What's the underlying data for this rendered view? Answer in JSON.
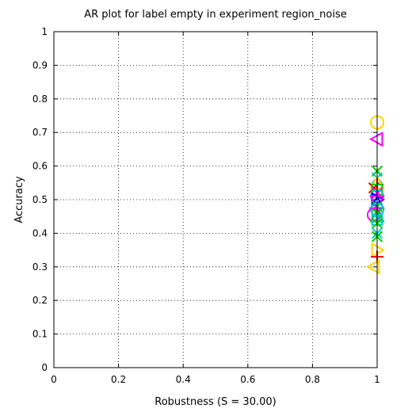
{
  "chart_data": {
    "type": "scatter",
    "title": "AR plot for label empty in experiment region_noise",
    "xlabel": "Robustness (S = 30.00)",
    "ylabel": "Accuracy",
    "xlim": [
      0,
      1
    ],
    "ylim": [
      0,
      1
    ],
    "xticks": [
      "0",
      "0.2",
      "0.4",
      "0.6",
      "0.8",
      "1"
    ],
    "yticks": [
      "0",
      "0.1",
      "0.2",
      "0.3",
      "0.4",
      "0.5",
      "0.6",
      "0.7",
      "0.8",
      "0.9",
      "1"
    ],
    "grid": true,
    "points": [
      {
        "x": 1.0,
        "y": 0.73,
        "marker": "circle",
        "color": "#ffd400"
      },
      {
        "x": 1.0,
        "y": 0.68,
        "marker": "triangle-left",
        "color": "#ff00ff"
      },
      {
        "x": 1.0,
        "y": 0.585,
        "marker": "x",
        "color": "#00cc00"
      },
      {
        "x": 1.0,
        "y": 0.565,
        "marker": "x",
        "color": "#00cccc"
      },
      {
        "x": 1.0,
        "y": 0.55,
        "marker": "triangle-up",
        "color": "#ffd400"
      },
      {
        "x": 1.0,
        "y": 0.545,
        "marker": "plus",
        "color": "#ff0000"
      },
      {
        "x": 0.99,
        "y": 0.535,
        "marker": "x",
        "color": "#ff0000"
      },
      {
        "x": 1.0,
        "y": 0.53,
        "marker": "square",
        "color": "#00cc00"
      },
      {
        "x": 1.0,
        "y": 0.52,
        "marker": "x",
        "color": "#ff00ff"
      },
      {
        "x": 1.0,
        "y": 0.51,
        "marker": "circle",
        "color": "#00cccc"
      },
      {
        "x": 1.0,
        "y": 0.5,
        "marker": "triangle-right",
        "color": "#0000ff"
      },
      {
        "x": 1.0,
        "y": 0.495,
        "marker": "triangle-down",
        "color": "#ff00ff"
      },
      {
        "x": 1.0,
        "y": 0.49,
        "marker": "triangle-up",
        "color": "#0000ff"
      },
      {
        "x": 1.0,
        "y": 0.48,
        "marker": "x",
        "color": "#00cc00"
      },
      {
        "x": 0.995,
        "y": 0.475,
        "marker": "plus",
        "color": "#9933ff"
      },
      {
        "x": 1.0,
        "y": 0.47,
        "marker": "circle",
        "color": "#00cccc"
      },
      {
        "x": 1.0,
        "y": 0.46,
        "marker": "x",
        "color": "#00cc00"
      },
      {
        "x": 0.99,
        "y": 0.455,
        "marker": "circle",
        "color": "#ff00ff"
      },
      {
        "x": 1.0,
        "y": 0.45,
        "marker": "triangle-up",
        "color": "#00cc00"
      },
      {
        "x": 1.0,
        "y": 0.445,
        "marker": "x",
        "color": "#00cccc"
      },
      {
        "x": 1.0,
        "y": 0.44,
        "marker": "square",
        "color": "#00cccc"
      },
      {
        "x": 1.0,
        "y": 0.43,
        "marker": "x",
        "color": "#00cc00"
      },
      {
        "x": 1.0,
        "y": 0.4,
        "marker": "x",
        "color": "#00cccc"
      },
      {
        "x": 1.0,
        "y": 0.39,
        "marker": "x",
        "color": "#00cc00"
      },
      {
        "x": 1.0,
        "y": 0.35,
        "marker": "triangle-right",
        "color": "#ffd400"
      },
      {
        "x": 1.0,
        "y": 0.33,
        "marker": "plus",
        "color": "#ff0000"
      },
      {
        "x": 0.99,
        "y": 0.3,
        "marker": "triangle-left",
        "color": "#ffd400"
      }
    ]
  }
}
